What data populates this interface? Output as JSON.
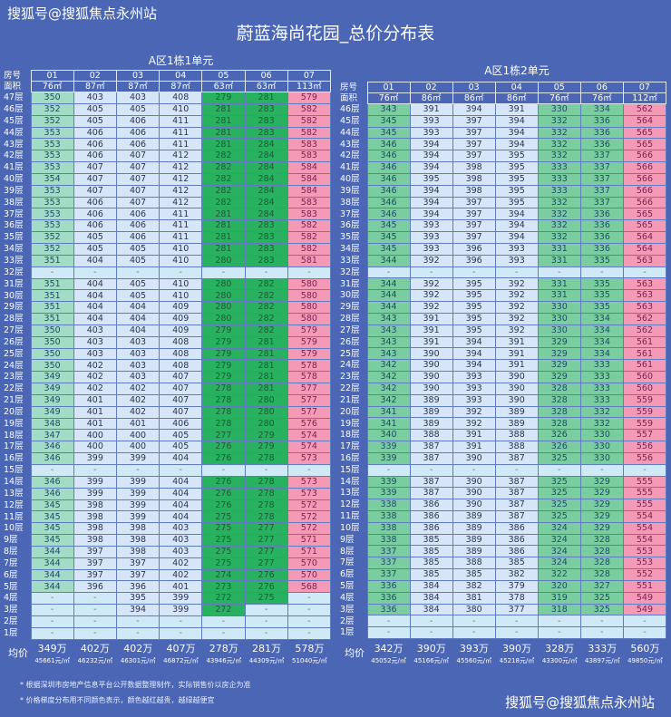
{
  "watermark": "搜狐号@搜狐焦点永州站",
  "title": "蔚蓝海尚花园_总价分布表",
  "colors": {
    "background": "#4a66b4",
    "col01_left": "#a3dcc5",
    "col01_right": "#79cd9f",
    "mid": "#d6e6f8",
    "green_left": "#28b15f",
    "green_right": "#79cd9f",
    "pink": "#f59ab6",
    "empty": "#cfe9f7"
  },
  "label_room": "房号",
  "label_area": "面积",
  "label_avg": "均价",
  "tables": [
    {
      "name": "A区1栋1单元",
      "rooms": [
        "01",
        "02",
        "03",
        "04",
        "05",
        "06",
        "07"
      ],
      "areas": [
        "76㎡",
        "87㎡",
        "87㎡",
        "87㎡",
        "63㎡",
        "63㎡",
        "113㎡"
      ],
      "rows": [
        [
          "47层",
          "350",
          "403",
          "403",
          "408",
          "279",
          "281",
          "579"
        ],
        [
          "46层",
          "352",
          "405",
          "405",
          "410",
          "281",
          "283",
          "582"
        ],
        [
          "45层",
          "352",
          "405",
          "406",
          "411",
          "281",
          "283",
          "582"
        ],
        [
          "44层",
          "353",
          "406",
          "406",
          "411",
          "281",
          "283",
          "582"
        ],
        [
          "43层",
          "353",
          "406",
          "406",
          "411",
          "281",
          "284",
          "583"
        ],
        [
          "42层",
          "353",
          "406",
          "407",
          "412",
          "282",
          "284",
          "583"
        ],
        [
          "41层",
          "353",
          "407",
          "407",
          "412",
          "282",
          "284",
          "584"
        ],
        [
          "40层",
          "354",
          "407",
          "407",
          "412",
          "282",
          "284",
          "584"
        ],
        [
          "39层",
          "353",
          "407",
          "407",
          "412",
          "282",
          "284",
          "584"
        ],
        [
          "38层",
          "353",
          "406",
          "407",
          "412",
          "282",
          "284",
          "583"
        ],
        [
          "37层",
          "353",
          "406",
          "406",
          "411",
          "281",
          "284",
          "583"
        ],
        [
          "36层",
          "353",
          "406",
          "406",
          "411",
          "281",
          "283",
          "582"
        ],
        [
          "35层",
          "352",
          "405",
          "406",
          "411",
          "281",
          "283",
          "582"
        ],
        [
          "34层",
          "352",
          "405",
          "405",
          "410",
          "281",
          "283",
          "582"
        ],
        [
          "33层",
          "351",
          "404",
          "405",
          "410",
          "280",
          "283",
          "581"
        ],
        [
          "32层",
          "-",
          "-",
          "-",
          "-",
          "-",
          "-",
          "-"
        ],
        [
          "31层",
          "351",
          "404",
          "405",
          "410",
          "280",
          "282",
          "580"
        ],
        [
          "30层",
          "351",
          "404",
          "405",
          "410",
          "280",
          "282",
          "580"
        ],
        [
          "29层",
          "351",
          "404",
          "404",
          "409",
          "280",
          "282",
          "580"
        ],
        [
          "28层",
          "351",
          "404",
          "404",
          "409",
          "280",
          "282",
          "580"
        ],
        [
          "27层",
          "350",
          "403",
          "404",
          "409",
          "279",
          "282",
          "579"
        ],
        [
          "26层",
          "350",
          "403",
          "403",
          "408",
          "279",
          "281",
          "579"
        ],
        [
          "25层",
          "350",
          "403",
          "403",
          "408",
          "279",
          "281",
          "579"
        ],
        [
          "24层",
          "350",
          "402",
          "403",
          "408",
          "279",
          "281",
          "578"
        ],
        [
          "23层",
          "349",
          "402",
          "403",
          "407",
          "279",
          "281",
          "578"
        ],
        [
          "22层",
          "349",
          "402",
          "402",
          "407",
          "278",
          "281",
          "577"
        ],
        [
          "21层",
          "349",
          "401",
          "402",
          "407",
          "278",
          "280",
          "577"
        ],
        [
          "20层",
          "349",
          "401",
          "402",
          "407",
          "278",
          "280",
          "577"
        ],
        [
          "19层",
          "348",
          "401",
          "401",
          "406",
          "278",
          "280",
          "576"
        ],
        [
          "18层",
          "347",
          "400",
          "400",
          "405",
          "277",
          "279",
          "574"
        ],
        [
          "17层",
          "346",
          "400",
          "400",
          "405",
          "276",
          "279",
          "574"
        ],
        [
          "16层",
          "346",
          "399",
          "399",
          "404",
          "276",
          "278",
          "573"
        ],
        [
          "15层",
          "-",
          "-",
          "-",
          "-",
          "-",
          "-",
          "-"
        ],
        [
          "14层",
          "346",
          "399",
          "399",
          "404",
          "276",
          "278",
          "573"
        ],
        [
          "13层",
          "346",
          "399",
          "399",
          "404",
          "276",
          "278",
          "573"
        ],
        [
          "12层",
          "345",
          "398",
          "399",
          "404",
          "276",
          "278",
          "572"
        ],
        [
          "11层",
          "345",
          "398",
          "399",
          "404",
          "275",
          "278",
          "572"
        ],
        [
          "10层",
          "345",
          "398",
          "398",
          "403",
          "275",
          "277",
          "572"
        ],
        [
          "9层",
          "345",
          "398",
          "398",
          "403",
          "275",
          "277",
          "571"
        ],
        [
          "8层",
          "344",
          "397",
          "398",
          "403",
          "275",
          "277",
          "571"
        ],
        [
          "7层",
          "344",
          "397",
          "397",
          "402",
          "275",
          "277",
          "570"
        ],
        [
          "6层",
          "344",
          "397",
          "397",
          "402",
          "274",
          "276",
          "570"
        ],
        [
          "5层",
          "344",
          "396",
          "396",
          "401",
          "273",
          "276",
          "568"
        ],
        [
          "4层",
          "-",
          "-",
          "395",
          "399",
          "272",
          "275",
          "-"
        ],
        [
          "3层",
          "-",
          "-",
          "394",
          "399",
          "272",
          "-",
          "-"
        ],
        [
          "2层",
          "-",
          "-",
          "-",
          "-",
          "-",
          "-",
          "-"
        ],
        [
          "1层",
          "-",
          "-",
          "-",
          "-",
          "-",
          "-",
          "-"
        ]
      ],
      "averages": [
        [
          "349万",
          "45661元/㎡"
        ],
        [
          "402万",
          "46232元/㎡"
        ],
        [
          "402万",
          "46301元/㎡"
        ],
        [
          "407万",
          "46872元/㎡"
        ],
        [
          "278万",
          "43946元/㎡"
        ],
        [
          "281万",
          "44309元/㎡"
        ],
        [
          "578万",
          "51040元/㎡"
        ]
      ]
    },
    {
      "name": "A区1栋2单元",
      "rooms": [
        "01",
        "02",
        "03",
        "04",
        "05",
        "06",
        "07"
      ],
      "areas": [
        "76㎡",
        "86㎡",
        "86㎡",
        "86㎡",
        "76㎡",
        "76㎡",
        "112㎡"
      ],
      "rows": [
        [
          "46层",
          "343",
          "391",
          "394",
          "391",
          "330",
          "334",
          "562"
        ],
        [
          "45层",
          "345",
          "393",
          "397",
          "394",
          "332",
          "336",
          "564"
        ],
        [
          "44层",
          "345",
          "393",
          "397",
          "394",
          "332",
          "336",
          "565"
        ],
        [
          "43层",
          "346",
          "394",
          "397",
          "394",
          "332",
          "336",
          "565"
        ],
        [
          "42层",
          "346",
          "394",
          "397",
          "395",
          "332",
          "337",
          "566"
        ],
        [
          "41层",
          "346",
          "394",
          "398",
          "395",
          "333",
          "337",
          "566"
        ],
        [
          "40层",
          "346",
          "395",
          "398",
          "395",
          "333",
          "337",
          "566"
        ],
        [
          "39层",
          "346",
          "394",
          "398",
          "395",
          "333",
          "337",
          "566"
        ],
        [
          "38层",
          "346",
          "394",
          "397",
          "395",
          "332",
          "337",
          "566"
        ],
        [
          "37层",
          "346",
          "394",
          "397",
          "394",
          "332",
          "336",
          "565"
        ],
        [
          "36层",
          "345",
          "393",
          "397",
          "394",
          "332",
          "336",
          "565"
        ],
        [
          "35层",
          "345",
          "393",
          "397",
          "394",
          "332",
          "336",
          "564"
        ],
        [
          "34层",
          "345",
          "393",
          "396",
          "393",
          "331",
          "336",
          "564"
        ],
        [
          "33层",
          "344",
          "392",
          "396",
          "393",
          "331",
          "335",
          "563"
        ],
        [
          "32层",
          "-",
          "-",
          "-",
          "-",
          "-",
          "-",
          "-"
        ],
        [
          "31层",
          "344",
          "392",
          "395",
          "392",
          "331",
          "335",
          "563"
        ],
        [
          "30层",
          "344",
          "392",
          "395",
          "392",
          "331",
          "335",
          "563"
        ],
        [
          "29层",
          "344",
          "392",
          "395",
          "392",
          "330",
          "335",
          "563"
        ],
        [
          "28层",
          "343",
          "391",
          "395",
          "392",
          "330",
          "334",
          "562"
        ],
        [
          "27层",
          "343",
          "391",
          "395",
          "392",
          "330",
          "334",
          "562"
        ],
        [
          "26层",
          "343",
          "391",
          "394",
          "391",
          "329",
          "334",
          "561"
        ],
        [
          "25层",
          "343",
          "390",
          "394",
          "391",
          "329",
          "334",
          "561"
        ],
        [
          "24层",
          "342",
          "390",
          "394",
          "391",
          "329",
          "333",
          "561"
        ],
        [
          "23层",
          "342",
          "390",
          "393",
          "390",
          "329",
          "333",
          "560"
        ],
        [
          "22层",
          "342",
          "390",
          "393",
          "390",
          "328",
          "333",
          "560"
        ],
        [
          "21层",
          "342",
          "389",
          "393",
          "390",
          "328",
          "333",
          "559"
        ],
        [
          "20层",
          "341",
          "389",
          "392",
          "389",
          "328",
          "332",
          "559"
        ],
        [
          "19层",
          "341",
          "389",
          "392",
          "389",
          "328",
          "332",
          "559"
        ],
        [
          "18层",
          "340",
          "388",
          "391",
          "388",
          "326",
          "330",
          "557"
        ],
        [
          "17层",
          "339",
          "387",
          "391",
          "388",
          "326",
          "330",
          "556"
        ],
        [
          "16层",
          "339",
          "387",
          "390",
          "387",
          "325",
          "330",
          "556"
        ],
        [
          "15层",
          "-",
          "-",
          "-",
          "-",
          "-",
          "-",
          "-"
        ],
        [
          "14层",
          "339",
          "387",
          "390",
          "387",
          "325",
          "329",
          "555"
        ],
        [
          "13层",
          "339",
          "387",
          "390",
          "387",
          "325",
          "329",
          "555"
        ],
        [
          "12层",
          "338",
          "386",
          "390",
          "387",
          "325",
          "329",
          "555"
        ],
        [
          "11层",
          "338",
          "386",
          "389",
          "387",
          "325",
          "329",
          "554"
        ],
        [
          "10层",
          "338",
          "386",
          "389",
          "386",
          "324",
          "329",
          "554"
        ],
        [
          "9层",
          "338",
          "385",
          "389",
          "386",
          "324",
          "328",
          "554"
        ],
        [
          "8层",
          "337",
          "385",
          "389",
          "386",
          "324",
          "328",
          "553"
        ],
        [
          "7层",
          "337",
          "385",
          "388",
          "385",
          "324",
          "328",
          "553"
        ],
        [
          "6层",
          "337",
          "385",
          "385",
          "382",
          "322",
          "328",
          "552"
        ],
        [
          "5层",
          "336",
          "384",
          "382",
          "379",
          "320",
          "327",
          "551"
        ],
        [
          "4层",
          "336",
          "384",
          "381",
          "378",
          "319",
          "325",
          "549"
        ],
        [
          "3层",
          "336",
          "384",
          "380",
          "377",
          "318",
          "325",
          "549"
        ],
        [
          "2层",
          "-",
          "-",
          "-",
          "-",
          "-",
          "-",
          "-"
        ],
        [
          "1层",
          "-",
          "-",
          "-",
          "-",
          "-",
          "-",
          "-"
        ]
      ],
      "averages": [
        [
          "342万",
          "45052元/㎡"
        ],
        [
          "390万",
          "45166元/㎡"
        ],
        [
          "393万",
          "45560元/㎡"
        ],
        [
          "390万",
          "45218元/㎡"
        ],
        [
          "328万",
          "43300元/㎡"
        ],
        [
          "333万",
          "43897元/㎡"
        ],
        [
          "560万",
          "49850元/㎡"
        ]
      ]
    }
  ],
  "notes": [
    "* 根据深圳市房地产信息平台公开数据整理制作，实际销售价以房企为准",
    "* 价格梯度分布用不同颜色表示，颜色越红越贵，越绿越便宜"
  ]
}
